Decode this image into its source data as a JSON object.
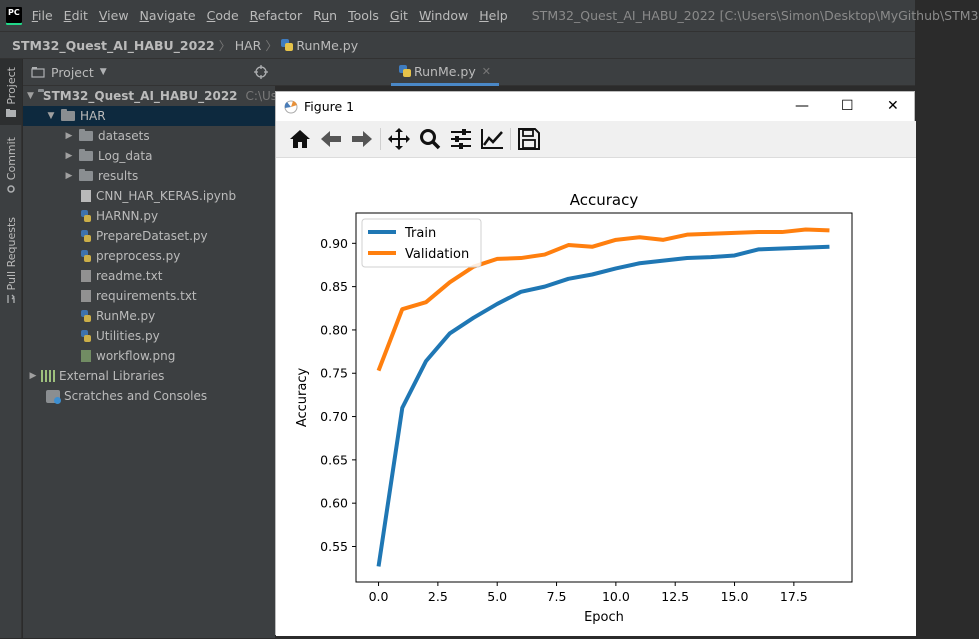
{
  "app": {
    "logo": "PC",
    "menu": [
      "File",
      "Edit",
      "View",
      "Navigate",
      "Code",
      "Refactor",
      "Run",
      "Tools",
      "Git",
      "Window",
      "Help"
    ],
    "menu_underline": [
      "F",
      "E",
      "V",
      "N",
      "C",
      "R",
      "u",
      "T",
      "G",
      "W",
      "H"
    ],
    "window_title": "STM32_Quest_AI_HABU_2022 [C:\\Users\\Simon\\Desktop\\MyGithub\\STM3"
  },
  "breadcrumb": {
    "project": "STM32_Quest_AI_HABU_2022",
    "folder": "HAR",
    "file": "RunMe.py"
  },
  "tool_windows": {
    "project": "Project",
    "commit": "Commit",
    "pull_requests": "Pull Requests"
  },
  "project_panel": {
    "title": "Project",
    "root": {
      "label": "STM32_Quest_AI_HABU_2022",
      "path_hint": "C:\\Us"
    },
    "har": "HAR",
    "folders": [
      "datasets",
      "Log_data",
      "results"
    ],
    "files": [
      {
        "name": "CNN_HAR_KERAS.ipynb",
        "kind": "nb"
      },
      {
        "name": "HARNN.py",
        "kind": "py"
      },
      {
        "name": "PrepareDataset.py",
        "kind": "py"
      },
      {
        "name": "preprocess.py",
        "kind": "py"
      },
      {
        "name": "readme.txt",
        "kind": "txt"
      },
      {
        "name": "requirements.txt",
        "kind": "txt"
      },
      {
        "name": "RunMe.py",
        "kind": "py"
      },
      {
        "name": "Utilities.py",
        "kind": "py"
      },
      {
        "name": "workflow.png",
        "kind": "img"
      }
    ],
    "external_libraries": "External Libraries",
    "scratches": "Scratches and Consoles"
  },
  "editor": {
    "active_tab": "RunMe.py"
  },
  "figure": {
    "window_title": "Figure 1",
    "toolbar": [
      "home-icon",
      "back-icon",
      "forward-icon",
      "pan-icon",
      "zoom-icon",
      "configure-subplots-icon",
      "edit-axis-icon",
      "save-icon"
    ]
  },
  "chart_data": {
    "type": "line",
    "title": "Accuracy",
    "xlabel": "Epoch",
    "ylabel": "Accuracy",
    "xlim": [
      -0.95,
      19.95
    ],
    "ylim": [
      0.509,
      0.935
    ],
    "xticks": [
      0.0,
      2.5,
      5.0,
      7.5,
      10.0,
      12.5,
      15.0,
      17.5
    ],
    "xtick_labels": [
      "0.0",
      "2.5",
      "5.0",
      "7.5",
      "10.0",
      "12.5",
      "15.0",
      "17.5"
    ],
    "yticks": [
      0.55,
      0.6,
      0.65,
      0.7,
      0.75,
      0.8,
      0.85,
      0.9
    ],
    "ytick_labels": [
      "0.55",
      "0.60",
      "0.65",
      "0.70",
      "0.75",
      "0.80",
      "0.85",
      "0.90"
    ],
    "grid": false,
    "legend_position": "upper left",
    "x": [
      0,
      1,
      2,
      3,
      4,
      5,
      6,
      7,
      8,
      9,
      10,
      11,
      12,
      13,
      14,
      15,
      16,
      17,
      18,
      19
    ],
    "series": [
      {
        "name": "Train",
        "color": "#1f77b4",
        "values": [
          0.527,
          0.71,
          0.764,
          0.796,
          0.814,
          0.83,
          0.844,
          0.85,
          0.859,
          0.864,
          0.871,
          0.877,
          0.88,
          0.883,
          0.884,
          0.886,
          0.893,
          0.894,
          0.895,
          0.896
        ]
      },
      {
        "name": "Validation",
        "color": "#ff7f0e",
        "values": [
          0.753,
          0.824,
          0.832,
          0.855,
          0.873,
          0.882,
          0.883,
          0.887,
          0.898,
          0.896,
          0.904,
          0.907,
          0.904,
          0.91,
          0.911,
          0.912,
          0.913,
          0.913,
          0.916,
          0.915
        ]
      }
    ]
  }
}
